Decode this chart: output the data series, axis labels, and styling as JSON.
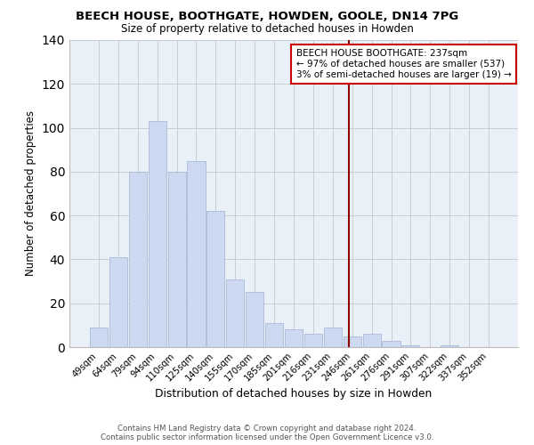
{
  "title": "BEECH HOUSE, BOOTHGATE, HOWDEN, GOOLE, DN14 7PG",
  "subtitle": "Size of property relative to detached houses in Howden",
  "xlabel": "Distribution of detached houses by size in Howden",
  "ylabel": "Number of detached properties",
  "bar_labels": [
    "49sqm",
    "64sqm",
    "79sqm",
    "94sqm",
    "110sqm",
    "125sqm",
    "140sqm",
    "155sqm",
    "170sqm",
    "185sqm",
    "201sqm",
    "216sqm",
    "231sqm",
    "246sqm",
    "261sqm",
    "276sqm",
    "291sqm",
    "307sqm",
    "322sqm",
    "337sqm",
    "352sqm"
  ],
  "bar_values": [
    9,
    41,
    80,
    103,
    80,
    85,
    62,
    31,
    25,
    11,
    8,
    6,
    9,
    5,
    6,
    3,
    1,
    0,
    1,
    0,
    0
  ],
  "bar_color": "#ccd9f0",
  "bar_edge_color": "#aabbd8",
  "vline_color": "#8b0000",
  "annotation_title": "BEECH HOUSE BOOTHGATE: 237sqm",
  "annotation_line1": "← 97% of detached houses are smaller (537)",
  "annotation_line2": "3% of semi-detached houses are larger (19) →",
  "annotation_box_color": "#ffffff",
  "annotation_border_color": "#cc0000",
  "ylim": [
    0,
    140
  ],
  "yticks": [
    0,
    20,
    40,
    60,
    80,
    100,
    120,
    140
  ],
  "grid_color": "#cccccc",
  "bg_color": "#eaf0f8",
  "footer_line1": "Contains HM Land Registry data © Crown copyright and database right 2024.",
  "footer_line2": "Contains public sector information licensed under the Open Government Licence v3.0."
}
